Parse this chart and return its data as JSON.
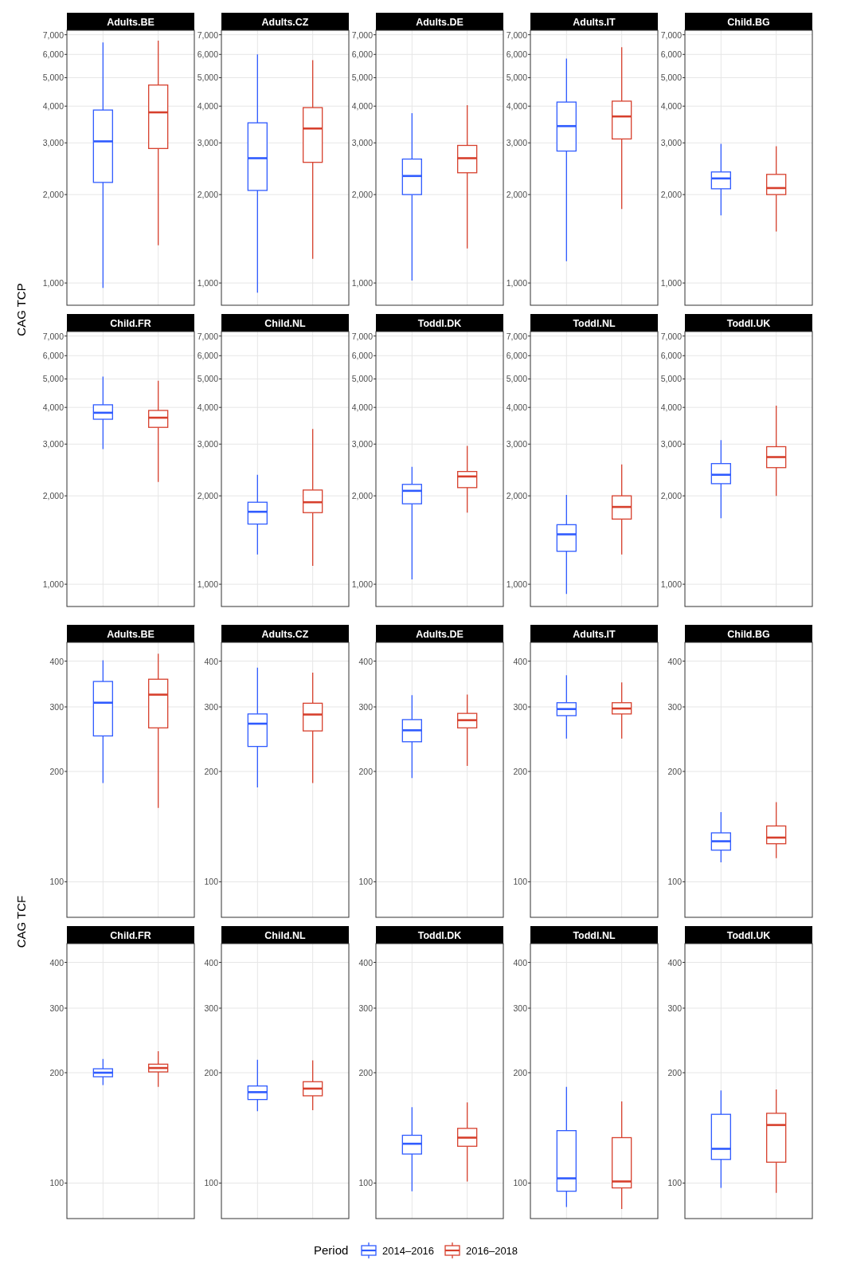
{
  "chart_data": [
    {
      "type": "box",
      "title": "Adults.BE",
      "ylabel": "CAG TCP",
      "legend": "bottom",
      "legend_title": "Period",
      "categories": [
        null
      ],
      "log": true,
      "grid": true,
      "ylim": [
        840,
        7250
      ],
      "yticks": [
        {
          "value": 1000,
          "label": "1,000"
        },
        {
          "value": 2000,
          "label": "2,000"
        },
        {
          "value": 3000,
          "label": "3,000"
        },
        {
          "value": 4000,
          "label": "4,000"
        },
        {
          "value": 5000,
          "label": "5,000"
        },
        {
          "value": 6000,
          "label": "6,000"
        },
        {
          "value": 7000,
          "label": "7,000"
        }
      ],
      "series": [
        {
          "name": "2014–2016",
          "color": "#2f5bff",
          "boxes": [
            {
              "low": 962,
              "q1": 2200,
              "median": 3035,
              "q3": 3880,
              "high": 6590
            }
          ]
        },
        {
          "name": "2016–2018",
          "color": "#d7402d",
          "boxes": [
            {
              "low": 1345,
              "q1": 2870,
              "median": 3810,
              "q3": 4720,
              "high": 6680
            }
          ]
        }
      ]
    },
    {
      "type": "box",
      "title": "Adults.CZ",
      "categories": [
        null
      ],
      "log": true,
      "grid": true,
      "ylim": [
        840,
        7250
      ],
      "yticks": [
        {
          "value": 1000,
          "label": "1,000"
        },
        {
          "value": 2000,
          "label": "2,000"
        },
        {
          "value": 3000,
          "label": "3,000"
        },
        {
          "value": 4000,
          "label": "4,000"
        },
        {
          "value": 5000,
          "label": "5,000"
        },
        {
          "value": 6000,
          "label": "6,000"
        },
        {
          "value": 7000,
          "label": "7,000"
        }
      ],
      "series": [
        {
          "name": "2014–2016",
          "color": "#2f5bff",
          "boxes": [
            {
              "low": 927,
              "q1": 2066,
              "median": 2660,
              "q3": 3510,
              "high": 6000
            }
          ]
        },
        {
          "name": "2016–2018",
          "color": "#d7402d",
          "boxes": [
            {
              "low": 1208,
              "q1": 2575,
              "median": 3357,
              "q3": 3955,
              "high": 5740
            }
          ]
        }
      ]
    },
    {
      "type": "box",
      "title": "Adults.DE",
      "categories": [
        null
      ],
      "log": true,
      "grid": true,
      "ylim": [
        840,
        7250
      ],
      "yticks": [
        {
          "value": 1000,
          "label": "1,000"
        },
        {
          "value": 2000,
          "label": "2,000"
        },
        {
          "value": 3000,
          "label": "3,000"
        },
        {
          "value": 4000,
          "label": "4,000"
        },
        {
          "value": 5000,
          "label": "5,000"
        },
        {
          "value": 6000,
          "label": "6,000"
        },
        {
          "value": 7000,
          "label": "7,000"
        }
      ],
      "series": [
        {
          "name": "2014–2016",
          "color": "#2f5bff",
          "boxes": [
            {
              "low": 1020,
              "q1": 2000,
              "median": 2314,
              "q3": 2642,
              "high": 3785
            }
          ]
        },
        {
          "name": "2016–2018",
          "color": "#d7402d",
          "boxes": [
            {
              "low": 1312,
              "q1": 2373,
              "median": 2660,
              "q3": 2940,
              "high": 4030
            }
          ]
        }
      ]
    },
    {
      "type": "box",
      "title": "Adults.IT",
      "categories": [
        null
      ],
      "log": true,
      "grid": true,
      "ylim": [
        840,
        7250
      ],
      "yticks": [
        {
          "value": 1000,
          "label": "1,000"
        },
        {
          "value": 2000,
          "label": "2,000"
        },
        {
          "value": 3000,
          "label": "3,000"
        },
        {
          "value": 4000,
          "label": "4,000"
        },
        {
          "value": 5000,
          "label": "5,000"
        },
        {
          "value": 6000,
          "label": "6,000"
        },
        {
          "value": 7000,
          "label": "7,000"
        }
      ],
      "series": [
        {
          "name": "2014–2016",
          "color": "#2f5bff",
          "boxes": [
            {
              "low": 1186,
              "q1": 2813,
              "median": 3421,
              "q3": 4130,
              "high": 5810
            }
          ]
        },
        {
          "name": "2016–2018",
          "color": "#d7402d",
          "boxes": [
            {
              "low": 1786,
              "q1": 3093,
              "median": 3690,
              "q3": 4160,
              "high": 6350
            }
          ]
        }
      ]
    },
    {
      "type": "box",
      "title": "Child.BG",
      "categories": [
        null
      ],
      "log": true,
      "grid": true,
      "ylim": [
        840,
        7250
      ],
      "yticks": [
        {
          "value": 1000,
          "label": "1,000"
        },
        {
          "value": 2000,
          "label": "2,000"
        },
        {
          "value": 3000,
          "label": "3,000"
        },
        {
          "value": 4000,
          "label": "4,000"
        },
        {
          "value": 5000,
          "label": "5,000"
        },
        {
          "value": 6000,
          "label": "6,000"
        },
        {
          "value": 7000,
          "label": "7,000"
        }
      ],
      "series": [
        {
          "name": "2014–2016",
          "color": "#2f5bff",
          "boxes": [
            {
              "low": 1699,
              "q1": 2093,
              "median": 2270,
              "q3": 2388,
              "high": 2978
            }
          ]
        },
        {
          "name": "2016–2018",
          "color": "#d7402d",
          "boxes": [
            {
              "low": 1497,
              "q1": 2000,
              "median": 2105,
              "q3": 2343,
              "high": 2922
            }
          ]
        }
      ]
    },
    {
      "type": "box",
      "title": "Child.FR",
      "categories": [
        null
      ],
      "log": true,
      "grid": true,
      "ylim": [
        840,
        7250
      ],
      "yticks": [
        {
          "value": 1000,
          "label": "1,000"
        },
        {
          "value": 2000,
          "label": "2,000"
        },
        {
          "value": 3000,
          "label": "3,000"
        },
        {
          "value": 4000,
          "label": "4,000"
        },
        {
          "value": 5000,
          "label": "5,000"
        },
        {
          "value": 6000,
          "label": "6,000"
        },
        {
          "value": 7000,
          "label": "7,000"
        }
      ],
      "series": [
        {
          "name": "2014–2016",
          "color": "#2f5bff",
          "boxes": [
            {
              "low": 2886,
              "q1": 3646,
              "median": 3836,
              "q3": 4083,
              "high": 5090
            }
          ]
        },
        {
          "name": "2016–2018",
          "color": "#d7402d",
          "boxes": [
            {
              "low": 2229,
              "q1": 3421,
              "median": 3690,
              "q3": 3906,
              "high": 4932
            }
          ]
        }
      ]
    },
    {
      "type": "box",
      "title": "Child.NL",
      "categories": [
        null
      ],
      "log": true,
      "grid": true,
      "ylim": [
        840,
        7250
      ],
      "yticks": [
        {
          "value": 1000,
          "label": "1,000"
        },
        {
          "value": 2000,
          "label": "2,000"
        },
        {
          "value": 3000,
          "label": "3,000"
        },
        {
          "value": 4000,
          "label": "4,000"
        },
        {
          "value": 5000,
          "label": "5,000"
        },
        {
          "value": 6000,
          "label": "6,000"
        },
        {
          "value": 7000,
          "label": "7,000"
        }
      ],
      "series": [
        {
          "name": "2014–2016",
          "color": "#2f5bff",
          "boxes": [
            {
              "low": 1262,
              "q1": 1603,
              "median": 1765,
              "q3": 1902,
              "high": 2359
            }
          ]
        },
        {
          "name": "2016–2018",
          "color": "#d7402d",
          "boxes": [
            {
              "low": 1156,
              "q1": 1753,
              "median": 1902,
              "q3": 2093,
              "high": 3380
            }
          ]
        }
      ]
    },
    {
      "type": "box",
      "title": "Toddl.DK",
      "categories": [
        null
      ],
      "log": true,
      "grid": true,
      "ylim": [
        840,
        7250
      ],
      "yticks": [
        {
          "value": 1000,
          "label": "1,000"
        },
        {
          "value": 2000,
          "label": "2,000"
        },
        {
          "value": 3000,
          "label": "3,000"
        },
        {
          "value": 4000,
          "label": "4,000"
        },
        {
          "value": 5000,
          "label": "5,000"
        },
        {
          "value": 6000,
          "label": "6,000"
        },
        {
          "value": 7000,
          "label": "7,000"
        }
      ],
      "series": [
        {
          "name": "2014–2016",
          "color": "#2f5bff",
          "boxes": [
            {
              "low": 1038,
              "q1": 1879,
              "median": 2080,
              "q3": 2188,
              "high": 2512
            }
          ]
        },
        {
          "name": "2016–2018",
          "color": "#d7402d",
          "boxes": [
            {
              "low": 1753,
              "q1": 2133,
              "median": 2328,
              "q3": 2420,
              "high": 2958
            }
          ]
        }
      ]
    },
    {
      "type": "box",
      "title": "Toddl.NL",
      "categories": [
        null
      ],
      "log": true,
      "grid": true,
      "ylim": [
        840,
        7250
      ],
      "yticks": [
        {
          "value": 1000,
          "label": "1,000"
        },
        {
          "value": 2000,
          "label": "2,000"
        },
        {
          "value": 3000,
          "label": "3,000"
        },
        {
          "value": 4000,
          "label": "4,000"
        },
        {
          "value": 5000,
          "label": "5,000"
        },
        {
          "value": 6000,
          "label": "6,000"
        },
        {
          "value": 7000,
          "label": "7,000"
        }
      ],
      "series": [
        {
          "name": "2014–2016",
          "color": "#2f5bff",
          "boxes": [
            {
              "low": 927,
              "q1": 1295,
              "median": 1479,
              "q3": 1595,
              "high": 2014
            }
          ]
        },
        {
          "name": "2016–2018",
          "color": "#d7402d",
          "boxes": [
            {
              "low": 1262,
              "q1": 1667,
              "median": 1833,
              "q3": 2000,
              "high": 2560
            }
          ]
        }
      ]
    },
    {
      "type": "box",
      "title": "Toddl.UK",
      "categories": [
        null
      ],
      "log": true,
      "grid": true,
      "ylim": [
        840,
        7250
      ],
      "yticks": [
        {
          "value": 1000,
          "label": "1,000"
        },
        {
          "value": 2000,
          "label": "2,000"
        },
        {
          "value": 3000,
          "label": "3,000"
        },
        {
          "value": 4000,
          "label": "4,000"
        },
        {
          "value": 5000,
          "label": "5,000"
        },
        {
          "value": 6000,
          "label": "6,000"
        },
        {
          "value": 7000,
          "label": "7,000"
        }
      ],
      "series": [
        {
          "name": "2014–2016",
          "color": "#2f5bff",
          "boxes": [
            {
              "low": 1679,
              "q1": 2200,
              "median": 2359,
              "q3": 2575,
              "high": 3093
            }
          ]
        },
        {
          "name": "2016–2018",
          "color": "#d7402d",
          "boxes": [
            {
              "low": 2000,
              "q1": 2495,
              "median": 2710,
              "q3": 2940,
              "high": 4055
            }
          ]
        }
      ]
    },
    {
      "type": "box",
      "title": "Adults.BE",
      "ylabel": "CAG TCF",
      "categories": [
        null
      ],
      "log": true,
      "grid": true,
      "ylim": [
        80,
        450
      ],
      "yticks": [
        100,
        200,
        300,
        400
      ],
      "series": [
        {
          "name": "2014–2016",
          "color": "#2f5bff",
          "boxes": [
            {
              "low": 186,
              "q1": 250,
              "median": 308,
              "q3": 352,
              "high": 402
            }
          ]
        },
        {
          "name": "2016–2018",
          "color": "#d7402d",
          "boxes": [
            {
              "low": 159,
              "q1": 263,
              "median": 324,
              "q3": 357,
              "high": 419
            }
          ]
        }
      ]
    },
    {
      "type": "box",
      "title": "Adults.CZ",
      "categories": [
        null
      ],
      "log": true,
      "grid": true,
      "ylim": [
        80,
        450
      ],
      "yticks": [
        100,
        200,
        300,
        400
      ],
      "series": [
        {
          "name": "2014–2016",
          "color": "#2f5bff",
          "boxes": [
            {
              "low": 181,
              "q1": 234,
              "median": 270,
              "q3": 287,
              "high": 384
            }
          ]
        },
        {
          "name": "2016–2018",
          "color": "#d7402d",
          "boxes": [
            {
              "low": 186,
              "q1": 258,
              "median": 286,
              "q3": 307,
              "high": 372
            }
          ]
        }
      ]
    },
    {
      "type": "box",
      "title": "Adults.DE",
      "categories": [
        null
      ],
      "log": true,
      "grid": true,
      "ylim": [
        80,
        450
      ],
      "yticks": [
        100,
        200,
        300,
        400
      ],
      "series": [
        {
          "name": "2014–2016",
          "color": "#2f5bff",
          "boxes": [
            {
              "low": 192,
              "q1": 241,
              "median": 259,
              "q3": 277,
              "high": 323
            }
          ]
        },
        {
          "name": "2016–2018",
          "color": "#d7402d",
          "boxes": [
            {
              "low": 207,
              "q1": 263,
              "median": 276,
              "q3": 288,
              "high": 324
            }
          ]
        }
      ]
    },
    {
      "type": "box",
      "title": "Adults.IT",
      "categories": [
        null
      ],
      "log": true,
      "grid": true,
      "ylim": [
        80,
        450
      ],
      "yticks": [
        100,
        200,
        300,
        400
      ],
      "series": [
        {
          "name": "2014–2016",
          "color": "#2f5bff",
          "boxes": [
            {
              "low": 246,
              "q1": 284,
              "median": 296,
              "q3": 308,
              "high": 366
            }
          ]
        },
        {
          "name": "2016–2018",
          "color": "#d7402d",
          "boxes": [
            {
              "low": 246,
              "q1": 287,
              "median": 297,
              "q3": 308,
              "high": 350
            }
          ]
        }
      ]
    },
    {
      "type": "box",
      "title": "Child.BG",
      "categories": [
        null
      ],
      "log": true,
      "grid": true,
      "ylim": [
        80,
        450
      ],
      "yticks": [
        100,
        200,
        300,
        400
      ],
      "series": [
        {
          "name": "2014–2016",
          "color": "#2f5bff",
          "boxes": [
            {
              "low": 113,
              "q1": 122,
              "median": 129,
              "q3": 136,
              "high": 155
            }
          ]
        },
        {
          "name": "2016–2018",
          "color": "#d7402d",
          "boxes": [
            {
              "low": 116,
              "q1": 127,
              "median": 132,
              "q3": 142,
              "high": 165
            }
          ]
        }
      ]
    },
    {
      "type": "box",
      "title": "Child.FR",
      "categories": [
        null
      ],
      "log": true,
      "grid": true,
      "ylim": [
        80,
        450
      ],
      "yticks": [
        100,
        200,
        300,
        400
      ],
      "series": [
        {
          "name": "2014–2016",
          "color": "#2f5bff",
          "boxes": [
            {
              "low": 185,
              "q1": 195,
              "median": 200,
              "q3": 205,
              "high": 218
            }
          ]
        },
        {
          "name": "2016–2018",
          "color": "#d7402d",
          "boxes": [
            {
              "low": 183,
              "q1": 201,
              "median": 206,
              "q3": 211,
              "high": 229
            }
          ]
        }
      ]
    },
    {
      "type": "box",
      "title": "Child.NL",
      "categories": [
        null
      ],
      "log": true,
      "grid": true,
      "ylim": [
        80,
        450
      ],
      "yticks": [
        100,
        200,
        300,
        400
      ],
      "series": [
        {
          "name": "2014–2016",
          "color": "#2f5bff",
          "boxes": [
            {
              "low": 157,
              "q1": 169,
              "median": 177,
              "q3": 184,
              "high": 217
            }
          ]
        },
        {
          "name": "2016–2018",
          "color": "#d7402d",
          "boxes": [
            {
              "low": 158,
              "q1": 173,
              "median": 181,
              "q3": 189,
              "high": 216
            }
          ]
        }
      ]
    },
    {
      "type": "box",
      "title": "Toddl.DK",
      "categories": [
        null
      ],
      "log": true,
      "grid": true,
      "ylim": [
        80,
        450
      ],
      "yticks": [
        100,
        200,
        300,
        400
      ],
      "series": [
        {
          "name": "2014–2016",
          "color": "#2f5bff",
          "boxes": [
            {
              "low": 95,
              "q1": 120,
              "median": 128,
              "q3": 135,
              "high": 161
            }
          ]
        },
        {
          "name": "2016–2018",
          "color": "#d7402d",
          "boxes": [
            {
              "low": 101,
              "q1": 126,
              "median": 133,
              "q3": 141,
              "high": 166
            }
          ]
        }
      ]
    },
    {
      "type": "box",
      "title": "Toddl.NL",
      "categories": [
        null
      ],
      "log": true,
      "grid": true,
      "ylim": [
        80,
        450
      ],
      "yticks": [
        100,
        200,
        300,
        400
      ],
      "series": [
        {
          "name": "2014–2016",
          "color": "#2f5bff",
          "boxes": [
            {
              "low": 86,
              "q1": 95,
              "median": 103,
              "q3": 139,
              "high": 183
            }
          ]
        },
        {
          "name": "2016–2018",
          "color": "#d7402d",
          "boxes": [
            {
              "low": 85,
              "q1": 97,
              "median": 101,
              "q3": 133,
              "high": 167
            }
          ]
        }
      ]
    },
    {
      "type": "box",
      "title": "Toddl.UK",
      "categories": [
        null
      ],
      "log": true,
      "grid": true,
      "ylim": [
        80,
        450
      ],
      "yticks": [
        100,
        200,
        300,
        400
      ],
      "series": [
        {
          "name": "2014–2016",
          "color": "#2f5bff",
          "boxes": [
            {
              "low": 97,
              "q1": 116,
              "median": 124,
              "q3": 154,
              "high": 179
            }
          ]
        },
        {
          "name": "2016–2018",
          "color": "#d7402d",
          "boxes": [
            {
              "low": 94,
              "q1": 114,
              "median": 144,
              "q3": 155,
              "high": 180
            }
          ]
        }
      ]
    }
  ]
}
